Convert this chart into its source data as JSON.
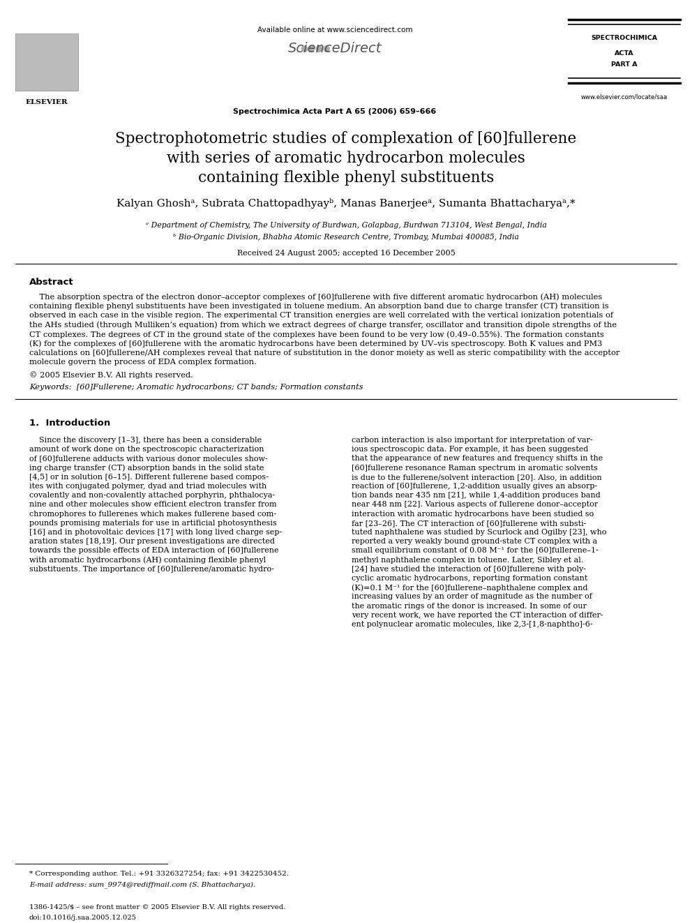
{
  "bg_color": "#ffffff",
  "title_line1": "Spectrophotometric studies of complexation of [60]fullerene",
  "title_line2": "with series of aromatic hydrocarbon molecules",
  "title_line3": "containing flexible phenyl substituents",
  "authors": "Kalyan Ghoshᵃ, Subrata Chattopadhyayᵇ, Manas Banerjeeᵃ, Sumanta Bhattacharyaᵃ,*",
  "affil_a": "ᵃ Department of Chemistry, The University of Burdwan, Golapbag, Burdwan 713104, West Bengal, India",
  "affil_b": "ᵇ Bio-Organic Division, Bhabha Atomic Research Centre, Trombay, Mumbai 400085, India",
  "received": "Received 24 August 2005; accepted 16 December 2005",
  "journal_header": "Available online at www.sciencedirect.com",
  "journal_name": "Spectrochimica Acta Part A 65 (2006) 659–666",
  "journal_right1": "SPECTROCHIMICA",
  "journal_right2": "ACTA",
  "journal_right3": "PART A",
  "journal_url": "www.elsevier.com/locate/saa",
  "abstract_title": "Abstract",
  "abstract_lines": [
    "    The absorption spectra of the electron donor–acceptor complexes of [60]fullerene with five different aromatic hydrocarbon (AH) molecules",
    "containing flexible phenyl substituents have been investigated in toluene medium. An absorption band due to charge transfer (CT) transition is",
    "observed in each case in the visible region. The experimental CT transition energies are well correlated with the vertical ionization potentials of",
    "the AHs studied (through Mulliken’s equation) from which we extract degrees of charge transfer, oscillator and transition dipole strengths of the",
    "CT complexes. The degrees of CT in the ground state of the complexes have been found to be very low (0.49–0.55%). The formation constants",
    "(K) for the complexes of [60]fullerene with the aromatic hydrocarbons have been determined by UV–vis spectroscopy. Both K values and PM3",
    "calculations on [60]fullerene/AH complexes reveal that nature of substitution in the donor moiety as well as steric compatibility with the acceptor",
    "molecule govern the process of EDA complex formation."
  ],
  "copyright": "© 2005 Elsevier B.V. All rights reserved.",
  "keywords": "Keywords:  [60]Fullerene; Aromatic hydrocarbons; CT bands; Formation constants",
  "section1_title": "1.  Introduction",
  "col1_lines": [
    "    Since the discovery [1–3], there has been a considerable",
    "amount of work done on the spectroscopic characterization",
    "of [60]fullerene adducts with various donor molecules show-",
    "ing charge transfer (CT) absorption bands in the solid state",
    "[4,5] or in solution [6–15]. Different fullerene based compos-",
    "ites with conjugated polymer, dyad and triad molecules with",
    "covalently and non-covalently attached porphyrin, phthalocya-",
    "nine and other molecules show efficient electron transfer from",
    "chromophores to fullerenes which makes fullerene based com-",
    "pounds promising materials for use in artificial photosynthesis",
    "[16] and in photovoltaic devices [17] with long lived charge sep-",
    "aration states [18,19]. Our present investigations are directed",
    "towards the possible effects of EDA interaction of [60]fullerene",
    "with aromatic hydrocarbons (AH) containing flexible phenyl",
    "substituents. The importance of [60]fullerene/aromatic hydro-"
  ],
  "col2_lines": [
    "carbon interaction is also important for interpretation of var-",
    "ious spectroscopic data. For example, it has been suggested",
    "that the appearance of new features and frequency shifts in the",
    "[60]fullerene resonance Raman spectrum in aromatic solvents",
    "is due to the fullerene/solvent interaction [20]. Also, in addition",
    "reaction of [60]fullerene, 1,2-addition usually gives an absorp-",
    "tion bands near 435 nm [21], while 1,4-addition produces band",
    "near 448 nm [22]. Various aspects of fullerene donor–acceptor",
    "interaction with aromatic hydrocarbons have been studied so",
    "far [23–26]. The CT interaction of [60]fullerene with substi-",
    "tuted naphthalene was studied by Scurlock and Ogilby [23], who",
    "reported a very weakly bound ground-state CT complex with a",
    "small equilibrium constant of 0.08 M⁻¹ for the [60]fullerene–1-",
    "methyl naphthalene complex in toluene. Later, Sibley et al.",
    "[24] have studied the interaction of [60]fullerene with poly-",
    "cyclic aromatic hydrocarbons, reporting formation constant",
    "(K)=0.1 M⁻¹ for the [60]fullerene–naphthalene complex and",
    "increasing values by an order of magnitude as the number of",
    "the aromatic rings of the donor is increased. In some of our",
    "very recent work, we have reported the CT interaction of differ-",
    "ent polynuclear aromatic molecules, like 2,3-[1,8-naphtho]-6-"
  ],
  "footnote_star": "* Corresponding author. Tel.: +91 3326327254; fax: +91 3422530452.",
  "footnote_email": "E-mail address: sum_9974@rediffmail.com (S. Bhattacharya).",
  "footer_issn": "1386-1425/$ – see front matter © 2005 Elsevier B.V. All rights reserved.",
  "footer_doi": "doi:10.1016/j.saa.2005.12.025"
}
